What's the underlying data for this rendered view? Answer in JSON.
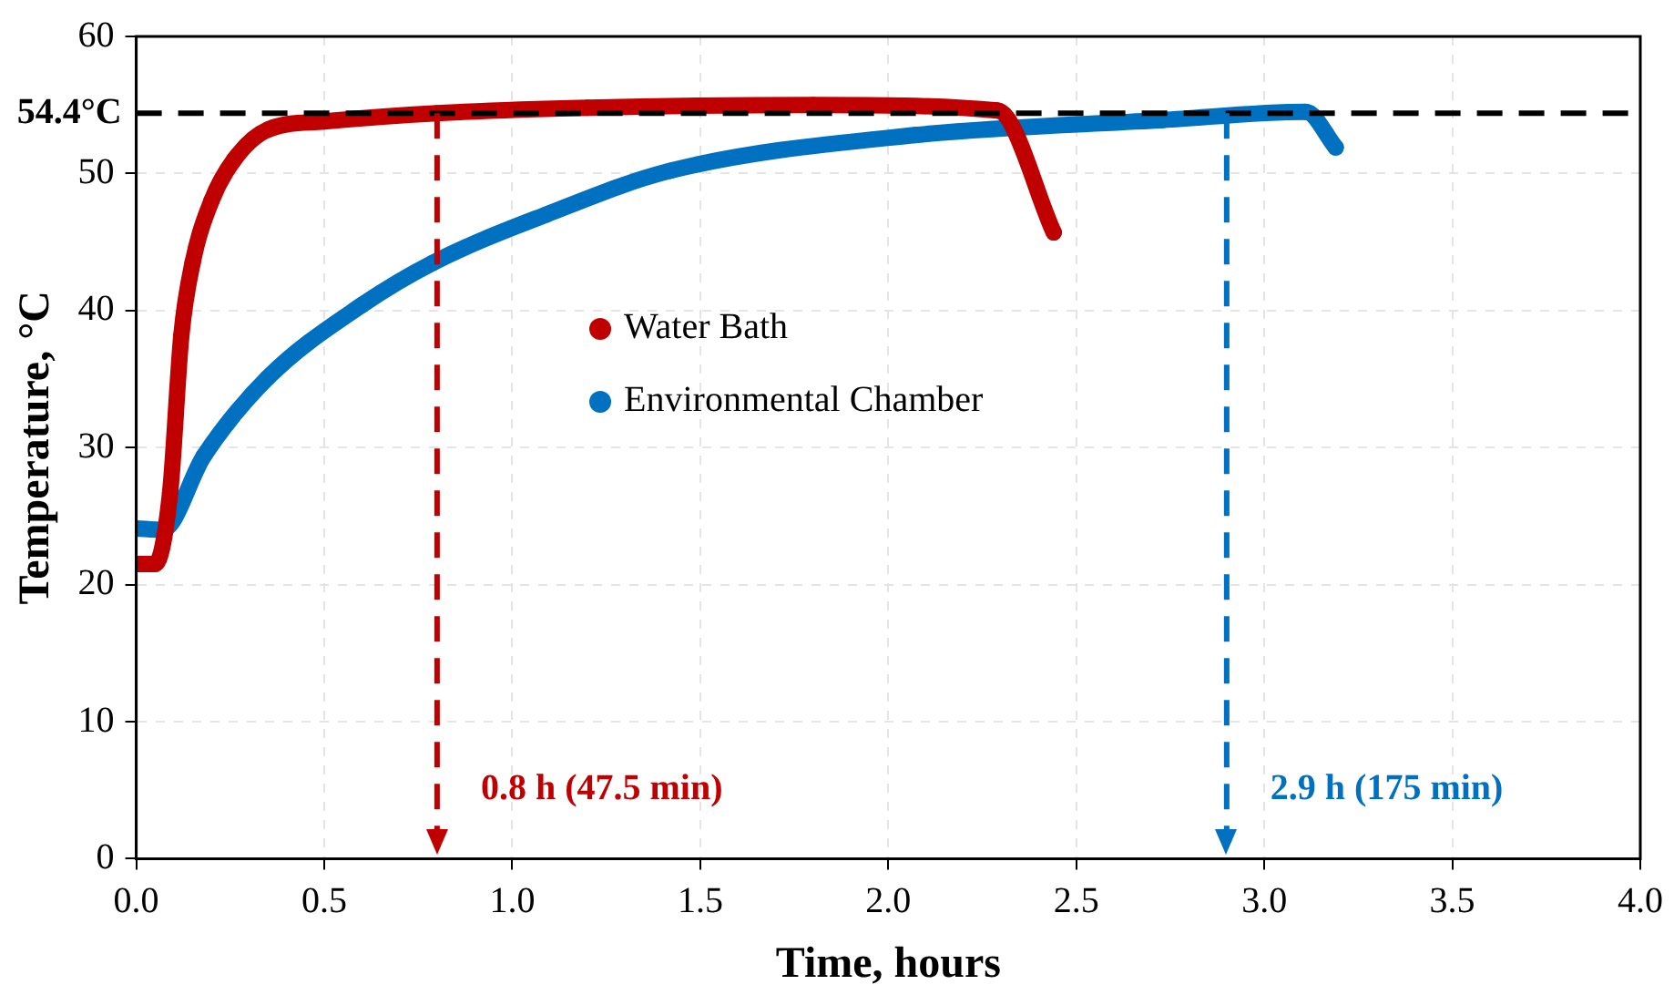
{
  "chart_data": {
    "type": "line",
    "xlabel": "Time, hours",
    "ylabel": "Temperature, °C",
    "xlim": [
      0,
      4
    ],
    "xticks": [
      {
        "value": 0,
        "label": "0.0"
      },
      {
        "value": 0.5,
        "label": "0.5"
      },
      {
        "value": 1,
        "label": "1.0"
      },
      {
        "value": 1.5,
        "label": "1.5"
      },
      {
        "value": 2,
        "label": "2.0"
      },
      {
        "value": 2.5,
        "label": "2.5"
      },
      {
        "value": 3,
        "label": "3.0"
      },
      {
        "value": 3.5,
        "label": "3.5"
      },
      {
        "value": 4,
        "label": "4.0"
      }
    ],
    "ylim": [
      0,
      60
    ],
    "yticks": [
      0,
      10,
      20,
      30,
      40,
      50,
      60
    ],
    "grid": true,
    "legend": "center",
    "marker": "circle",
    "line_style": "solid",
    "series": [
      {
        "name": "Water Bath",
        "color": "#c00000",
        "x": [
          0,
          0.05,
          0.09,
          0.12,
          0.15,
          0.2,
          0.26,
          0.35,
          0.5,
          0.8,
          1.2,
          1.8,
          2.29,
          2.44
        ],
        "values": [
          21.5,
          21.5,
          26.7,
          38.2,
          43.5,
          48,
          51,
          53.2,
          53.8,
          54.4,
          54.8,
          55,
          54.6,
          45.7
        ]
      },
      {
        "name": "Environmental Chamber",
        "color": "#0070c0",
        "x": [
          0,
          0.07,
          0.18,
          0.35,
          0.6,
          0.79,
          1.09,
          1.42,
          2.07,
          2.73,
          3.11,
          3.19
        ],
        "values": [
          24.1,
          24,
          29.4,
          35.1,
          40.4,
          43.5,
          47,
          50.2,
          52.8,
          53.9,
          54.5,
          51.9
        ]
      }
    ],
    "ref_lines": [
      {
        "axis": "y",
        "value": 54.4,
        "label": "54.4°C",
        "color": "#000000",
        "line_style": "dashed"
      },
      {
        "axis": "x",
        "value": 0.8,
        "label": "0.8 h (47.5 min)",
        "color": "#c00000",
        "line_style": "dashed"
      },
      {
        "axis": "x",
        "value": 2.9,
        "label": "2.9 h (175 min)",
        "color": "#0070c0",
        "line_style": "dashed"
      }
    ]
  }
}
